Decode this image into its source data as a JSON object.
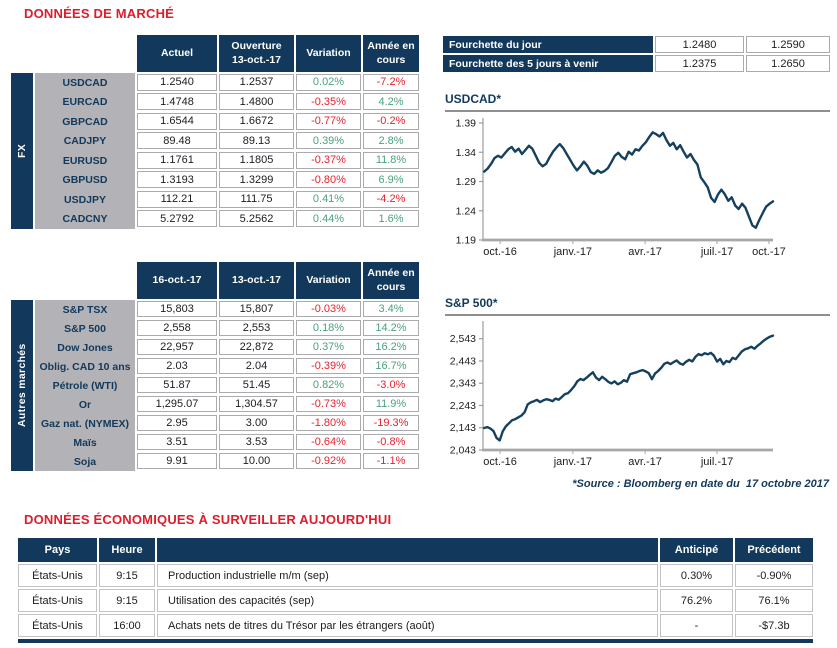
{
  "titles": {
    "market": "DONNÉES DE MARCHÉ",
    "economic": "DONNÉES ÉCONOMIQUES À SURVEILLER AUJOURD'HUI"
  },
  "colors": {
    "navy": "#12395b",
    "title_red": "#dd1d2c",
    "positive": "#4aa17c",
    "negative": "#e32430",
    "label_grey": "#b3b2b6",
    "line": "#15405f"
  },
  "fx": {
    "band_label": "FX",
    "headers": [
      "Actuel",
      "Ouverture\n13-oct.-17",
      "Variation",
      "Année en\ncours"
    ],
    "rows": [
      {
        "label": "USDCAD",
        "current": "1.2540",
        "open": "1.2537",
        "variation": "0.02%",
        "ytd": "-7.2%"
      },
      {
        "label": "EURCAD",
        "current": "1.4748",
        "open": "1.4800",
        "variation": "-0.35%",
        "ytd": "4.2%"
      },
      {
        "label": "GBPCAD",
        "current": "1.6544",
        "open": "1.6672",
        "variation": "-0.77%",
        "ytd": "-0.2%"
      },
      {
        "label": "CADJPY",
        "current": "89.48",
        "open": "89.13",
        "variation": "0.39%",
        "ytd": "2.8%"
      },
      {
        "label": "EURUSD",
        "current": "1.1761",
        "open": "1.1805",
        "variation": "-0.37%",
        "ytd": "11.8%"
      },
      {
        "label": "GBPUSD",
        "current": "1.3193",
        "open": "1.3299",
        "variation": "-0.80%",
        "ytd": "6.9%"
      },
      {
        "label": "USDJPY",
        "current": "112.21",
        "open": "111.75",
        "variation": "0.41%",
        "ytd": "-4.2%"
      },
      {
        "label": "CADCNY",
        "current": "5.2792",
        "open": "5.2562",
        "variation": "0.44%",
        "ytd": "1.6%"
      }
    ]
  },
  "markets": {
    "band_label": "Autres marchés",
    "headers": [
      "16-oct.-17",
      "13-oct.-17",
      "Variation",
      "Année en\ncours"
    ],
    "rows": [
      {
        "label": "S&P TSX",
        "current": "15,803",
        "open": "15,807",
        "variation": "-0.03%",
        "ytd": "3.4%"
      },
      {
        "label": "S&P 500",
        "current": "2,558",
        "open": "2,553",
        "variation": "0.18%",
        "ytd": "14.2%"
      },
      {
        "label": "Dow Jones",
        "current": "22,957",
        "open": "22,872",
        "variation": "0.37%",
        "ytd": "16.2%"
      },
      {
        "label": "Oblig. CAD 10 ans",
        "current": "2.03",
        "open": "2.04",
        "variation": "-0.39%",
        "ytd": "16.7%"
      },
      {
        "label": "Pétrole (WTI)",
        "current": "51.87",
        "open": "51.45",
        "variation": "0.82%",
        "ytd": "-3.0%"
      },
      {
        "label": "Or",
        "current": "1,295.07",
        "open": "1,304.57",
        "variation": "-0.73%",
        "ytd": "11.9%"
      },
      {
        "label": "Gaz nat. (NYMEX)",
        "current": "2.95",
        "open": "3.00",
        "variation": "-1.80%",
        "ytd": "-19.3%"
      },
      {
        "label": "Maïs",
        "current": "3.51",
        "open": "3.53",
        "variation": "-0.64%",
        "ytd": "-0.8%"
      },
      {
        "label": "Soja",
        "current": "9.91",
        "open": "10.00",
        "variation": "-0.92%",
        "ytd": "-1.1%"
      }
    ]
  },
  "ranges": {
    "rows": [
      {
        "label": "Fourchette du jour",
        "low": "1.2480",
        "high": "1.2590"
      },
      {
        "label": "Fourchette des 5 jours à venir",
        "low": "1.2375",
        "high": "1.2650"
      }
    ]
  },
  "source_note": "*Source : Bloomberg en date du  17 octobre 2017",
  "econ": {
    "headers": [
      "Pays",
      "Heure",
      "",
      "Anticipé",
      "Précédent"
    ],
    "rows": [
      {
        "pays": "États-Unis",
        "heure": "9:15",
        "event": "Production industrielle m/m (sep)",
        "anticipated": "0.30%",
        "previous": "-0.90%"
      },
      {
        "pays": "États-Unis",
        "heure": "9:15",
        "event": "Utilisation des capacités (sep)",
        "anticipated": "76.2%",
        "previous": "76.1%"
      },
      {
        "pays": "États-Unis",
        "heure": "16:00",
        "event": "Achats nets de titres du Trésor par les étrangers (août)",
        "anticipated": "-",
        "previous": "-$7.3b"
      }
    ]
  },
  "chart_data": [
    {
      "type": "line",
      "title": "USDCAD*",
      "xlabel": "",
      "ylabel": "",
      "legend": false,
      "grid": false,
      "x_ticks": [
        "oct.-16",
        "janv.-17",
        "avr.-17",
        "juil.-17",
        "oct.-17"
      ],
      "y_ticks": [
        1.19,
        1.24,
        1.29,
        1.34,
        1.39
      ],
      "y_tick_labels": [
        "1.19",
        "1.24",
        "1.29",
        "1.34",
        "1.39"
      ],
      "ylim": [
        1.19,
        1.39
      ],
      "values": [
        1.307,
        1.312,
        1.32,
        1.33,
        1.334,
        1.331,
        1.338,
        1.345,
        1.349,
        1.341,
        1.346,
        1.337,
        1.344,
        1.351,
        1.346,
        1.334,
        1.322,
        1.316,
        1.32,
        1.331,
        1.341,
        1.348,
        1.354,
        1.347,
        1.337,
        1.327,
        1.317,
        1.309,
        1.316,
        1.324,
        1.317,
        1.306,
        1.303,
        1.309,
        1.305,
        1.308,
        1.313,
        1.323,
        1.334,
        1.339,
        1.332,
        1.328,
        1.341,
        1.336,
        1.345,
        1.343,
        1.351,
        1.357,
        1.366,
        1.374,
        1.371,
        1.367,
        1.373,
        1.361,
        1.351,
        1.356,
        1.345,
        1.352,
        1.341,
        1.331,
        1.337,
        1.327,
        1.319,
        1.297,
        1.289,
        1.28,
        1.262,
        1.255,
        1.268,
        1.276,
        1.268,
        1.257,
        1.263,
        1.249,
        1.243,
        1.252,
        1.245,
        1.23,
        1.215,
        1.211,
        1.224,
        1.236,
        1.247,
        1.252,
        1.256
      ]
    },
    {
      "type": "line",
      "title": "S&P 500*",
      "xlabel": "",
      "ylabel": "",
      "legend": false,
      "grid": false,
      "x_ticks": [
        "oct.-16",
        "janv.-17",
        "avr.-17",
        "juil.-17"
      ],
      "y_ticks": [
        2043,
        2143,
        2243,
        2343,
        2443,
        2543
      ],
      "y_tick_labels": [
        "2,043",
        "2,143",
        "2,243",
        "2,343",
        "2,443",
        "2,543"
      ],
      "ylim": [
        2043,
        2600
      ],
      "values": [
        2142,
        2146,
        2139,
        2128,
        2097,
        2086,
        2127,
        2150,
        2163,
        2177,
        2182,
        2190,
        2198,
        2213,
        2248,
        2257,
        2262,
        2268,
        2258,
        2266,
        2271,
        2268,
        2262,
        2274,
        2269,
        2281,
        2294,
        2298,
        2313,
        2330,
        2352,
        2362,
        2357,
        2368,
        2381,
        2392,
        2368,
        2357,
        2372,
        2361,
        2349,
        2342,
        2351,
        2338,
        2345,
        2357,
        2350,
        2384,
        2388,
        2392,
        2398,
        2402,
        2396,
        2388,
        2361,
        2386,
        2398,
        2412,
        2430,
        2436,
        2429,
        2438,
        2445,
        2432,
        2426,
        2439,
        2448,
        2441,
        2461,
        2474,
        2469,
        2478,
        2473,
        2479,
        2466,
        2440,
        2452,
        2428,
        2443,
        2438,
        2457,
        2451,
        2469,
        2486,
        2496,
        2500,
        2507,
        2498,
        2511,
        2522,
        2534,
        2544,
        2552,
        2557
      ]
    }
  ]
}
